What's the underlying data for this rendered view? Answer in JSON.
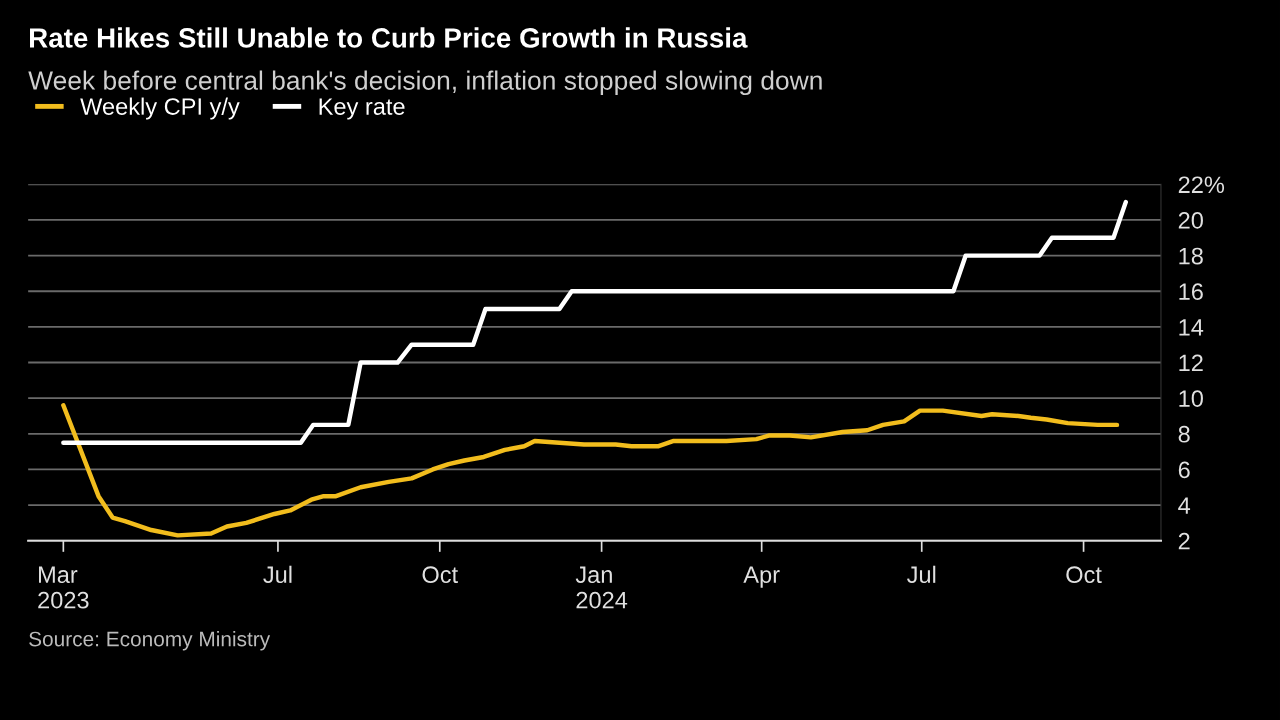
{
  "chart_data": {
    "type": "line",
    "title": "Rate Hikes Still Unable to Curb Price Growth in Russia",
    "subtitle": "Week before central bank's decision, inflation stopped slowing down",
    "annotations": [
      "Source: Economy Ministry"
    ],
    "legend": "top left",
    "grid": "y",
    "line_style": "solid",
    "xlim": [
      "2023-02-09",
      "2024-11-14"
    ],
    "xticks": [
      {
        "value": "2023-03-01",
        "label": "Mar\n2023"
      },
      {
        "value": "2023-07-01",
        "label": "Jul"
      },
      {
        "value": "2023-10-01",
        "label": "Oct"
      },
      {
        "value": "2024-01-01",
        "label": "Jan\n2024"
      },
      {
        "value": "2024-04-01",
        "label": "Apr"
      },
      {
        "value": "2024-07-01",
        "label": "Jul"
      },
      {
        "value": "2024-10-01",
        "label": "Oct"
      }
    ],
    "ylim": [
      2,
      22
    ],
    "yticks": [
      2,
      4,
      6,
      8,
      10,
      12,
      14,
      16,
      18,
      20,
      {
        "value": 22,
        "label": "22%"
      }
    ],
    "series": [
      {
        "name": "Weekly CPI y/y",
        "color": "#f2bd1d",
        "x": [
          "2023-03-01",
          "2023-03-21",
          "2023-03-29",
          "2023-04-05",
          "2023-04-20",
          "2023-05-05",
          "2023-05-24",
          "2023-06-02",
          "2023-06-13",
          "2023-06-29",
          "2023-07-08",
          "2023-07-20",
          "2023-07-27",
          "2023-08-03",
          "2023-08-17",
          "2023-09-02",
          "2023-09-15",
          "2023-09-27",
          "2023-10-06",
          "2023-10-15",
          "2023-10-26",
          "2023-11-07",
          "2023-11-18",
          "2023-11-24",
          "2023-12-08",
          "2023-12-22",
          "2024-01-09",
          "2024-01-18",
          "2024-01-25",
          "2024-02-02",
          "2024-02-11",
          "2024-03-12",
          "2024-03-29",
          "2024-04-05",
          "2024-04-17",
          "2024-04-29",
          "2024-05-17",
          "2024-05-31",
          "2024-06-09",
          "2024-06-21",
          "2024-06-30",
          "2024-07-13",
          "2024-08-04",
          "2024-08-10",
          "2024-08-25",
          "2024-09-01",
          "2024-09-10",
          "2024-09-22",
          "2024-10-09",
          "2024-10-20"
        ],
        "values": [
          9.6,
          4.5,
          3.3,
          3.1,
          2.6,
          2.3,
          2.4,
          2.8,
          3.0,
          3.5,
          3.7,
          4.3,
          4.5,
          4.5,
          5.0,
          5.3,
          5.5,
          6.0,
          6.3,
          6.5,
          6.7,
          7.1,
          7.3,
          7.6,
          7.5,
          7.4,
          7.4,
          7.3,
          7.3,
          7.3,
          7.6,
          7.6,
          7.7,
          7.9,
          7.9,
          7.8,
          8.1,
          8.2,
          8.5,
          8.7,
          9.3,
          9.3,
          9.0,
          9.1,
          9.0,
          8.9,
          8.8,
          8.6,
          8.5,
          8.5
        ]
      },
      {
        "name": "Key rate",
        "color": "#ffffff",
        "x": [
          "2023-03-01",
          "2023-07-14",
          "2023-07-21",
          "2023-08-10",
          "2023-08-17",
          "2023-09-07",
          "2023-09-15",
          "2023-10-20",
          "2023-10-27",
          "2023-12-08",
          "2023-12-15",
          "2024-07-19",
          "2024-07-26",
          "2024-09-06",
          "2024-09-13",
          "2024-10-18",
          "2024-10-25"
        ],
        "values": [
          7.5,
          7.5,
          8.5,
          8.5,
          12,
          12,
          13,
          13,
          15,
          15,
          16,
          16,
          18,
          18,
          19,
          19,
          21
        ]
      }
    ]
  }
}
